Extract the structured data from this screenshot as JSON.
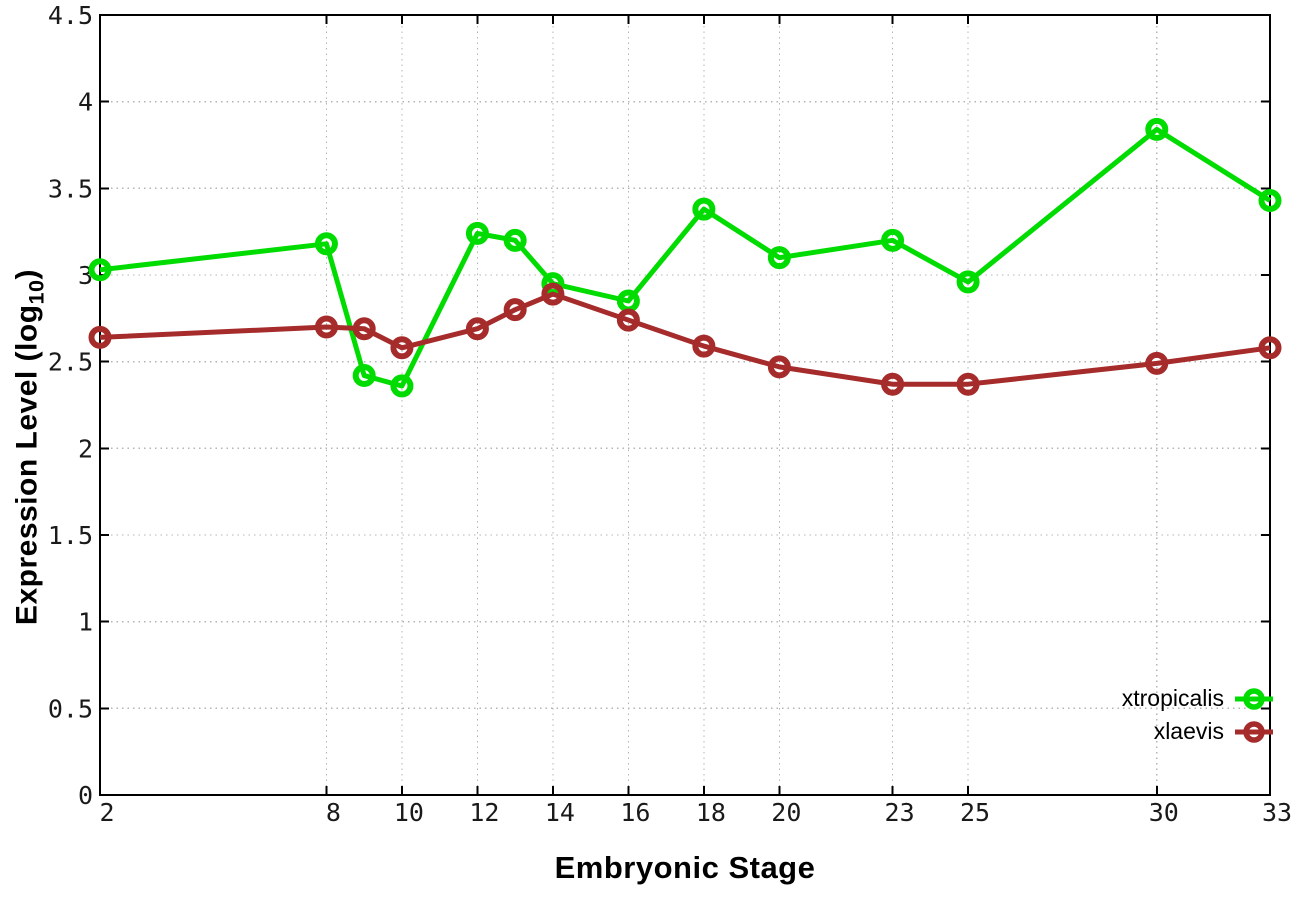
{
  "chart_data": {
    "type": "line",
    "title": "",
    "xlabel": "Embryonic Stage",
    "ylabel": "Expression Level (log10)",
    "ylabel_parts": {
      "pre": "Expression Level (log",
      "sub": "10",
      "post": ")"
    },
    "xlim": [
      2,
      33
    ],
    "ylim": [
      0,
      4.5
    ],
    "x_ticks": [
      2,
      8,
      10,
      12,
      14,
      16,
      18,
      20,
      23,
      25,
      30,
      33
    ],
    "y_ticks": [
      0,
      0.5,
      1,
      1.5,
      2,
      2.5,
      3,
      3.5,
      4,
      4.5
    ],
    "y_tick_labels": [
      "0",
      "0.5",
      "1",
      "1.5",
      "2",
      "2.5",
      "3",
      "3.5",
      "4",
      "4.5"
    ],
    "grid": true,
    "marker": "open-circle",
    "legend_position": "inside-bottom-right",
    "series": [
      {
        "name": "xtropicalis",
        "color": "#00dc00",
        "x": [
          2,
          8,
          9,
          10,
          12,
          13,
          14,
          16,
          18,
          20,
          23,
          25,
          30,
          33
        ],
        "y": [
          3.03,
          3.18,
          2.42,
          2.36,
          3.24,
          3.2,
          2.95,
          2.85,
          3.38,
          3.1,
          3.2,
          2.96,
          3.84,
          3.43
        ]
      },
      {
        "name": "xlaevis",
        "color": "#a62c2c",
        "x": [
          2,
          8,
          9,
          10,
          12,
          13,
          14,
          16,
          18,
          20,
          23,
          25,
          30,
          33
        ],
        "y": [
          2.64,
          2.7,
          2.69,
          2.58,
          2.69,
          2.8,
          2.89,
          2.74,
          2.59,
          2.47,
          2.37,
          2.37,
          2.49,
          2.58
        ]
      }
    ]
  },
  "styles": {
    "background": "#ffffff",
    "border_color": "#000000",
    "grid_color": "#b4b4b4",
    "tick_label_color": "#1a1a1a",
    "axis_label_color": "#000000"
  }
}
